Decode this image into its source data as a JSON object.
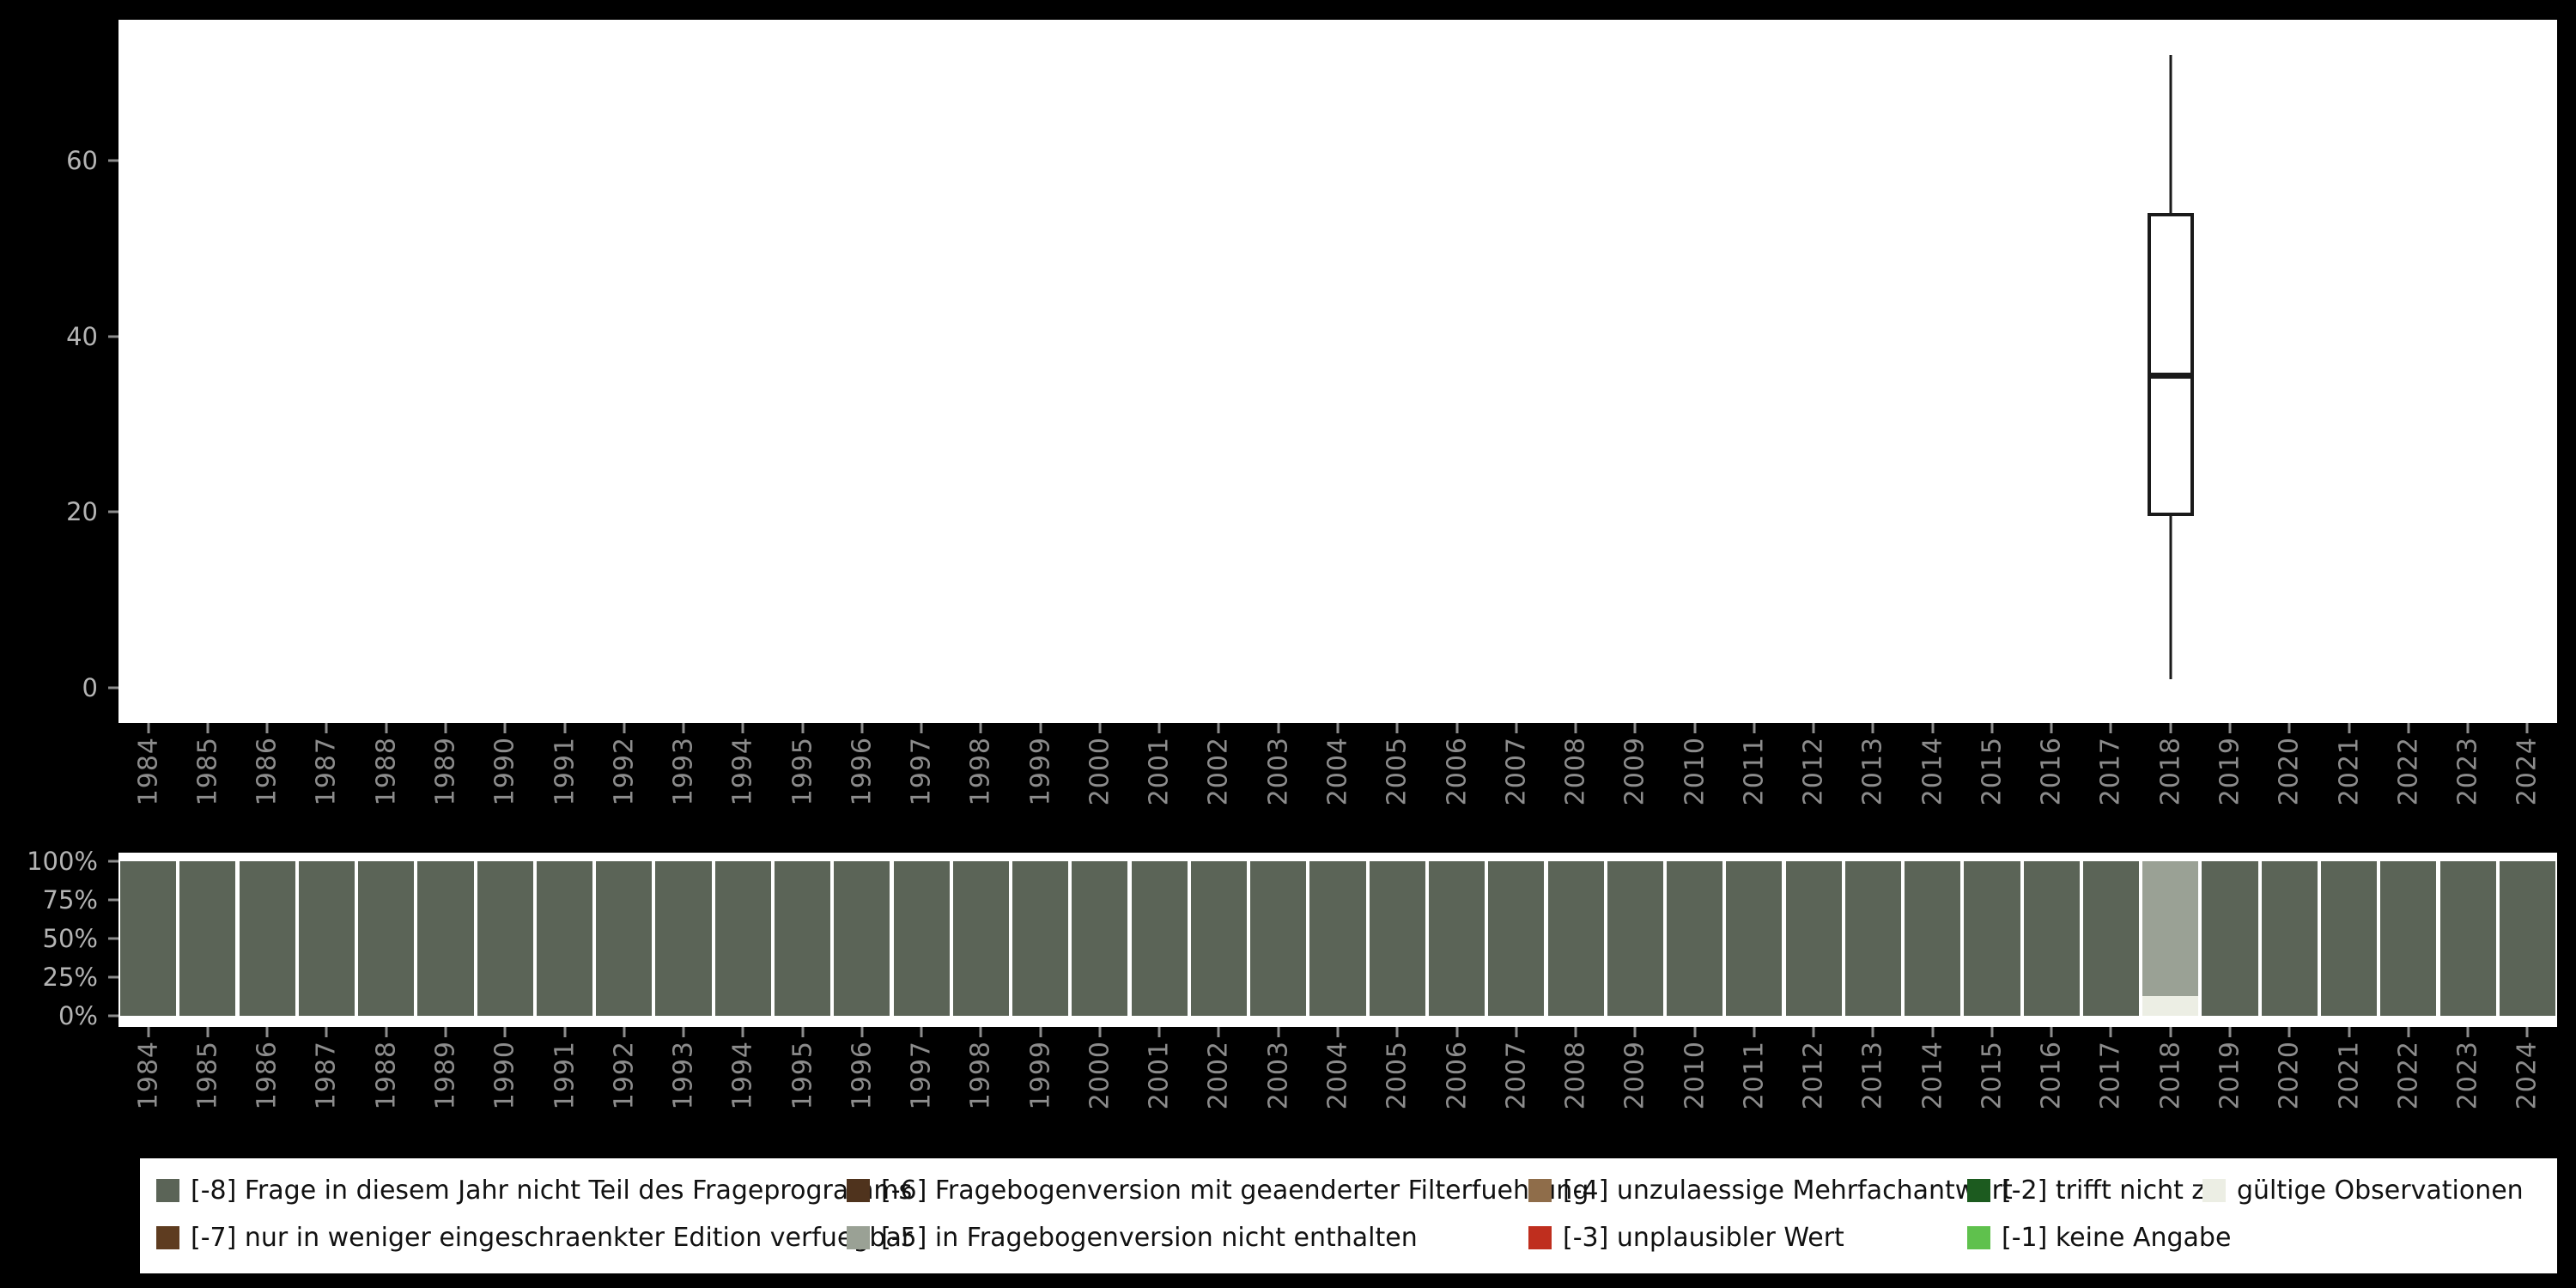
{
  "colors": {
    "page_bg": "#000000",
    "plot_bg": "#ffffff",
    "box_stroke": "#1a1a1a",
    "axis_year_text": "#8c8c8c",
    "axis_value_text": "#b4b4b4",
    "tick_mark": "#8c8c8c",
    "legend_text": "#111111"
  },
  "chart_data": [
    {
      "type": "boxplot",
      "title": "",
      "x_categories": [
        "1984",
        "1985",
        "1986",
        "1987",
        "1988",
        "1989",
        "1990",
        "1991",
        "1992",
        "1993",
        "1994",
        "1995",
        "1996",
        "1997",
        "1998",
        "1999",
        "2000",
        "2001",
        "2002",
        "2003",
        "2004",
        "2005",
        "2006",
        "2007",
        "2008",
        "2009",
        "2010",
        "2011",
        "2012",
        "2013",
        "2014",
        "2015",
        "2016",
        "2017",
        "2018",
        "2019",
        "2020",
        "2021",
        "2022",
        "2023",
        "2024"
      ],
      "yticks": [
        0,
        20,
        40,
        60
      ],
      "ylim": [
        -4,
        76
      ],
      "grid": "off",
      "boxes": [
        {
          "category": "2018",
          "whisker_low": 1,
          "q1": 19.5,
          "median": 35.5,
          "q3": 54,
          "whisker_high": 72
        }
      ]
    },
    {
      "type": "stacked-bar-percent",
      "title": "",
      "categories": [
        "1984",
        "1985",
        "1986",
        "1987",
        "1988",
        "1989",
        "1990",
        "1991",
        "1992",
        "1993",
        "1994",
        "1995",
        "1996",
        "1997",
        "1998",
        "1999",
        "2000",
        "2001",
        "2002",
        "2003",
        "2004",
        "2005",
        "2006",
        "2007",
        "2008",
        "2009",
        "2010",
        "2011",
        "2012",
        "2013",
        "2014",
        "2015",
        "2016",
        "2017",
        "2018",
        "2019",
        "2020",
        "2021",
        "2022",
        "2023",
        "2024"
      ],
      "ytick_labels": [
        "100%",
        "75%",
        "50%",
        "25%",
        "0%"
      ],
      "ylim": [
        0,
        100
      ],
      "default_stack": [
        {
          "key": "m8",
          "pct": 100
        }
      ],
      "overrides": {
        "2018": [
          {
            "key": "valid",
            "pct": 13
          },
          {
            "key": "m5",
            "pct": 87
          }
        ]
      }
    }
  ],
  "legend": {
    "columns": [
      [
        {
          "key": "m8",
          "label": "[-8] Frage in diesem Jahr nicht Teil des Frageprogramms",
          "color": "#5b6457"
        },
        {
          "key": "m7",
          "label": "[-7] nur in weniger eingeschraenkter Edition verfuegbar",
          "color": "#5e3c20"
        }
      ],
      [
        {
          "key": "m6",
          "label": "[-6] Fragebogenversion mit geaenderter Filterfuehrung",
          "color": "#4f331d"
        },
        {
          "key": "m5",
          "label": "[-5] in Fragebogenversion nicht enthalten",
          "color": "#9aa195"
        }
      ],
      [
        {
          "key": "m4",
          "label": "[-4] unzulaessige Mehrfachantwort",
          "color": "#8f6d4a"
        },
        {
          "key": "m3",
          "label": "[-3] unplausibler Wert",
          "color": "#bf2e1e"
        }
      ],
      [
        {
          "key": "m2",
          "label": "[-2] trifft nicht zu",
          "color": "#1c5b1f"
        },
        {
          "key": "m1",
          "label": "[-1] keine Angabe",
          "color": "#5fc14d"
        }
      ],
      [
        {
          "key": "valid",
          "label": "gültige Observationen",
          "color": "#eceee4"
        }
      ]
    ]
  }
}
